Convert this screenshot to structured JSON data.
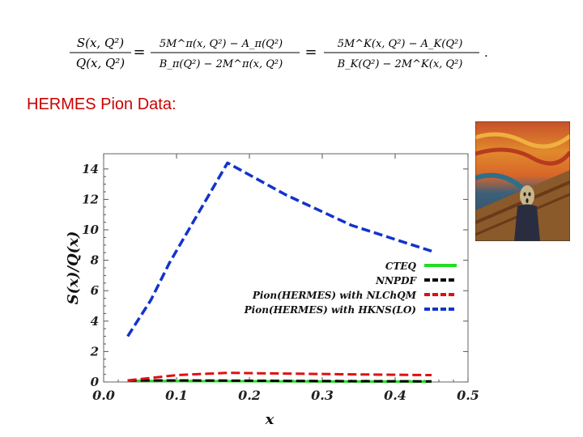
{
  "formula": {
    "lhs_num": "S(x, Q²)",
    "lhs_den": "Q(x, Q²)",
    "eq": "=",
    "pi_num": "5M^π(x, Q²) − A_π(Q²)",
    "pi_den": "B_π(Q²) − 2M^π(x, Q²)",
    "k_num": "5M^K(x, Q²) − A_K(Q²)",
    "k_den": "B_K(Q²) − 2M^K(x, Q²)",
    "period": "."
  },
  "section_title": "HERMES Pion Data:",
  "colors": {
    "title": "#cc0000",
    "cteq": "#22dd22",
    "nnpdf": "#000000",
    "nlchqm": "#dd1111",
    "hkns": "#1133cc"
  },
  "chart_data": {
    "type": "line",
    "xlabel": "x",
    "ylabel": "S(x)/Q(x)",
    "xlim": [
      0.0,
      0.5
    ],
    "ylim": [
      0,
      15
    ],
    "xticks": [
      "0.0",
      "0.1",
      "0.2",
      "0.3",
      "0.4",
      "0.5"
    ],
    "yticks": [
      "0",
      "2",
      "4",
      "6",
      "8",
      "10",
      "12",
      "14"
    ],
    "legend_position": "right",
    "series": [
      {
        "name": "CTEQ",
        "style": "solid",
        "color": "#22dd22",
        "x": [
          0.033,
          0.1,
          0.17,
          0.3,
          0.45
        ],
        "y": [
          0.08,
          0.06,
          0.05,
          0.03,
          0.02
        ]
      },
      {
        "name": "NNPDF",
        "style": "dashed",
        "color": "#000000",
        "x": [
          0.033,
          0.1,
          0.17,
          0.3,
          0.45
        ],
        "y": [
          0.1,
          0.1,
          0.09,
          0.06,
          0.04
        ]
      },
      {
        "name": "Pion(HERMES) with NLChQM",
        "style": "dashed",
        "color": "#dd1111",
        "x": [
          0.033,
          0.1,
          0.17,
          0.25,
          0.34,
          0.45
        ],
        "y": [
          0.1,
          0.45,
          0.6,
          0.55,
          0.5,
          0.45
        ]
      },
      {
        "name": "Pion(HERMES) with HKNS(LO)",
        "style": "dashed",
        "color": "#1133cc",
        "x": [
          0.033,
          0.065,
          0.09,
          0.17,
          0.25,
          0.34,
          0.45
        ],
        "y": [
          3.0,
          5.4,
          7.8,
          14.4,
          12.3,
          10.3,
          8.6
        ]
      }
    ]
  }
}
